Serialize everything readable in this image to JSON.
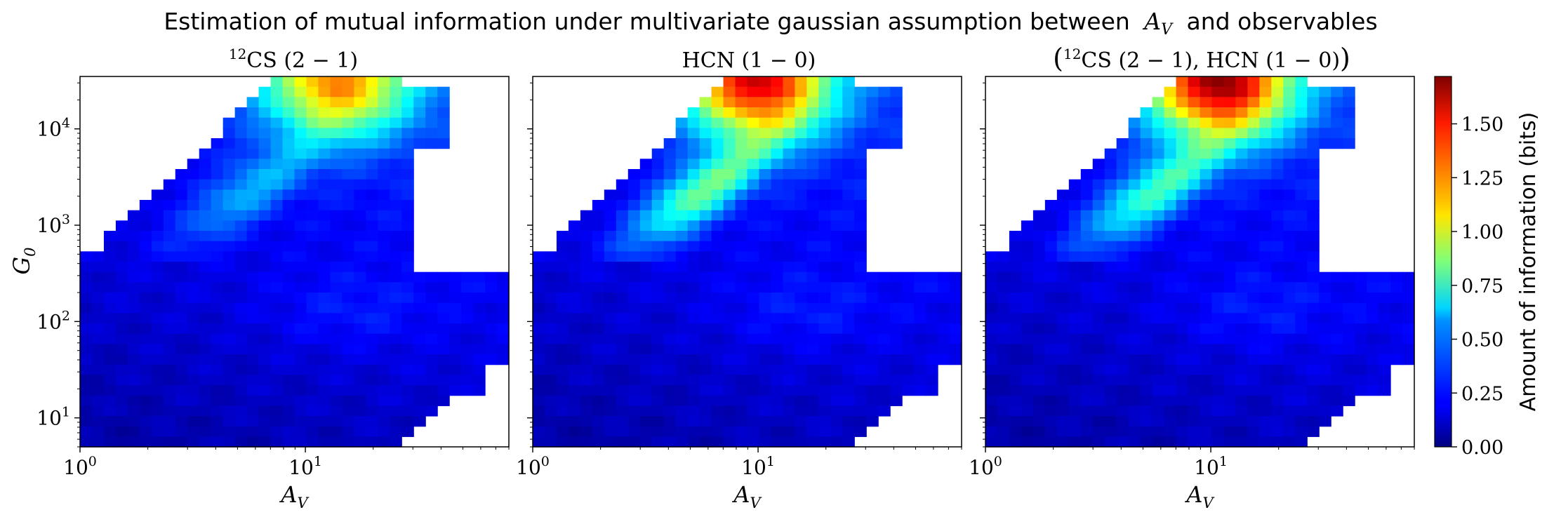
{
  "figure": {
    "title_text": "Estimation of mutual information under multivariate gaussian assumption between",
    "title_var": "A",
    "title_var_sub": "V",
    "title_suffix": "and observables"
  },
  "chart_data": {
    "type": "heatmap",
    "colormap": "jet",
    "x_scale": "log",
    "y_scale": "log",
    "xlim": [
      1,
      80
    ],
    "ylim": [
      5,
      35000
    ],
    "xlabel": "A_V",
    "ylabel": "G_0",
    "x_ticks": [
      {
        "value": 1,
        "label": "10^0"
      },
      {
        "value": 10,
        "label": "10^1"
      }
    ],
    "y_ticks": [
      {
        "value": 10,
        "label": "10^1"
      },
      {
        "value": 100,
        "label": "10^2"
      },
      {
        "value": 1000,
        "label": "10^3"
      },
      {
        "value": 10000,
        "label": "10^4"
      }
    ],
    "colorbar": {
      "label": "Amount of information (bits)",
      "min": 0,
      "max": 1.72,
      "ticks": [
        "0.00",
        "0.25",
        "0.50",
        "0.75",
        "1.00",
        "1.25",
        "1.50"
      ]
    },
    "panels": [
      {
        "title_parts": {
          "iso": "12",
          "main": "CS (2 − 1)"
        },
        "peak": {
          "x": 14,
          "y": 30000,
          "value": 1.0
        },
        "ridge": 0.3,
        "description_values": {
          "max_bits": 1.0,
          "background_bits": 0.1
        }
      },
      {
        "title_parts": {
          "main": "HCN (1 − 0)"
        },
        "peak": {
          "x": 10,
          "y": 30000,
          "value": 1.3
        },
        "ridge": 0.62,
        "description_values": {
          "max_bits": 1.3,
          "background_bits": 0.1
        }
      },
      {
        "title_parts": {
          "iso": "12",
          "main": "CS (2 − 1), HCN (1 − 0)"
        },
        "peak": {
          "x": 11,
          "y": 30000,
          "value": 1.42
        },
        "ridge": 0.55,
        "description_values": {
          "max_bits": 1.42,
          "background_bits": 0.12
        }
      }
    ]
  }
}
